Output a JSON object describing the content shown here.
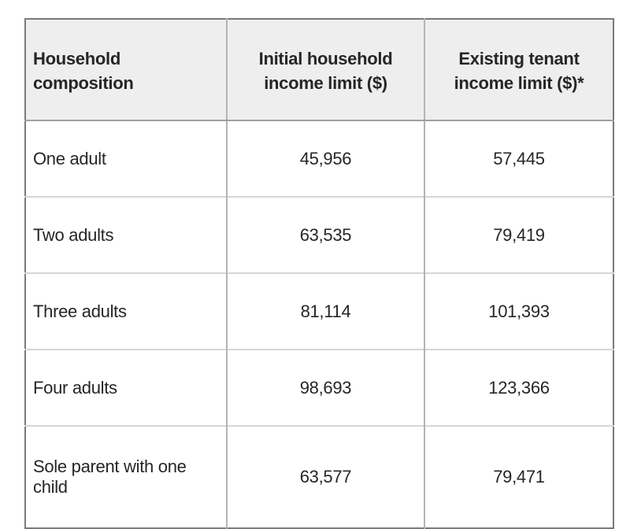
{
  "chart_data": {
    "type": "table",
    "title": "",
    "columns": [
      "Household composition",
      "Initial household income limit ($)",
      "Existing tenant income limit ($)*"
    ],
    "rows": [
      {
        "household_composition": "One adult",
        "initial_income_limit": "45,956",
        "existing_income_limit": "57,445"
      },
      {
        "household_composition": "Two adults",
        "initial_income_limit": "63,535",
        "existing_income_limit": "79,419"
      },
      {
        "household_composition": "Three adults",
        "initial_income_limit": "81,114",
        "existing_income_limit": "101,393"
      },
      {
        "household_composition": "Four adults",
        "initial_income_limit": "98,693",
        "existing_income_limit": "123,366"
      },
      {
        "household_composition": "Sole parent with one child",
        "initial_income_limit": "63,577",
        "existing_income_limit": "79,471",
        "note": "row clipped at bottom edge of screenshot"
      }
    ]
  },
  "table": {
    "headers": {
      "col1": "Household composition",
      "col2": "Initial household income limit ($)",
      "col3": "Existing tenant income limit ($)*"
    },
    "rows": [
      {
        "label": "One adult",
        "initial": "45,956",
        "existing": "57,445"
      },
      {
        "label": "Two adults",
        "initial": "63,535",
        "existing": "79,419"
      },
      {
        "label": "Three adults",
        "initial": "81,114",
        "existing": "101,393"
      },
      {
        "label": "Four adults",
        "initial": "98,693",
        "existing": "123,366"
      },
      {
        "label": "Sole parent with one child",
        "initial": "63,577",
        "existing": "79,471"
      }
    ],
    "colors": {
      "header_background": "#eeeeee",
      "body_background": "#ffffff",
      "outer_border": "#7a7a7a",
      "column_divider": "#b4b4b4",
      "row_divider": "#d6d6d6",
      "header_divider": "#a0a0a0",
      "text": "#262626"
    }
  }
}
